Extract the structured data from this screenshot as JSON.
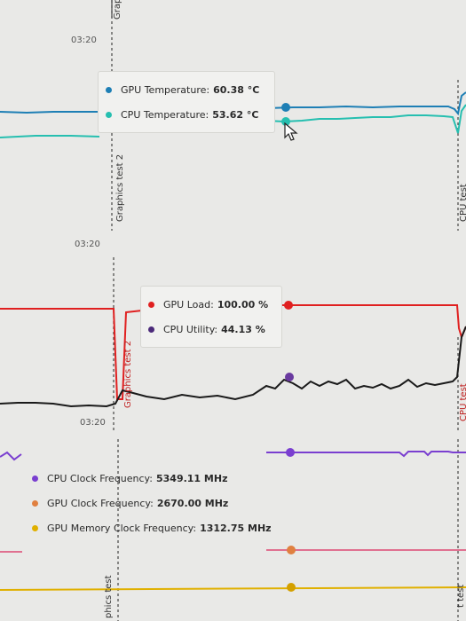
{
  "colors": {
    "gpu_temp": "#1e7fb5",
    "cpu_temp": "#26bfb0",
    "gpu_load": "#e02020",
    "cpu_util": "#4b2a7a",
    "cpu_clock": "#7a3fd0",
    "gpu_clock": "#e07090",
    "gpu_mem_clock": "#e0b000"
  },
  "panels": {
    "temperature": {
      "time_label": "03:20",
      "top_marker": "Grap",
      "marker_left": "Graphics test 2",
      "marker_right": "CPU test",
      "tooltip": {
        "rows": [
          {
            "label": "GPU Temperature:",
            "value": "60.38 °C"
          },
          {
            "label": "CPU Temperature:",
            "value": "53.62 °C"
          }
        ]
      }
    },
    "load": {
      "time_label": "03:20",
      "marker_left": "Graphics test 2",
      "marker_right": "CPU test",
      "tooltip": {
        "rows": [
          {
            "label": "GPU Load:",
            "value": "100.00 %"
          },
          {
            "label": "CPU Utility:",
            "value": "44.13 %"
          }
        ]
      }
    },
    "clock": {
      "time_label": "03:20",
      "marker_left": "phics test",
      "marker_right": "t test",
      "tooltip": {
        "rows": [
          {
            "label": "CPU Clock Frequency:",
            "value": "5349.11 MHz"
          },
          {
            "label": "GPU Clock Frequency:",
            "value": "2670.00 MHz"
          },
          {
            "label": "GPU Memory Clock Frequency:",
            "value": "1312.75 MHz"
          }
        ]
      }
    }
  }
}
